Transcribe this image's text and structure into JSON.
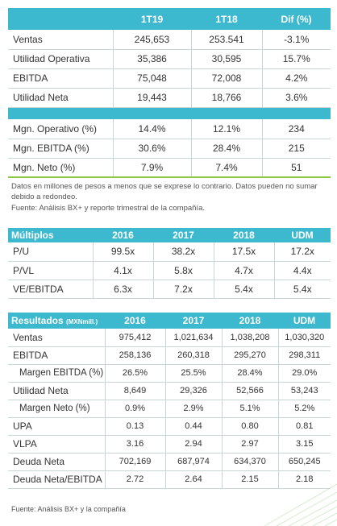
{
  "summary": {
    "header": [
      "1T19",
      "1T18",
      "Dif (%)"
    ],
    "rows": [
      [
        "Ventas",
        "245,653",
        "253.541",
        "-3.1%"
      ],
      [
        "Utilidad Operativa",
        "35,386",
        "30,595",
        "15.7%"
      ],
      [
        "EBITDA",
        "75,048",
        "72,008",
        "4.2%"
      ],
      [
        "Utilidad Neta",
        "19,443",
        "18,766",
        "3.6%"
      ]
    ],
    "margin_rows": [
      [
        "Mgn. Operativo (%)",
        "14.4%",
        "12.1%",
        "234"
      ],
      [
        "Mgn. EBITDA (%)",
        "30.6%",
        "28.4%",
        "215"
      ],
      [
        "Mgn. Neto (%)",
        "7.9%",
        "7.4%",
        "51"
      ]
    ]
  },
  "note": "Datos en millones de pesos a menos que se exprese lo contrario. Datos pueden no sumar debido a redondeo.",
  "source_1": "Fuente: Análisis BX+ y reporte trimestral de la compañía.",
  "multiples": {
    "header": [
      "Múltiplos",
      "2016",
      "2017",
      "2018",
      "UDM"
    ],
    "rows": [
      [
        "P/U",
        "99.5x",
        "38.2x",
        "17.5x",
        "17.2x"
      ],
      [
        "P/VL",
        "4.1x",
        "5.8x",
        "4.7x",
        "4.4x"
      ],
      [
        "VE/EBITDA",
        "6.3x",
        "7.2x",
        "5.4x",
        "5.4x"
      ]
    ]
  },
  "results": {
    "title": "Resultados",
    "unit": "(MXNmill.)",
    "header": [
      "2016",
      "2017",
      "2018",
      "UDM"
    ],
    "rows": [
      [
        "Ventas",
        "975,412",
        "1,021,634",
        "1,038,208",
        "1,030,320"
      ],
      [
        "EBITDA",
        "258,136",
        "260,318",
        "295,270",
        "298,311"
      ],
      [
        "Margen EBITDA (%)",
        "26.5%",
        "25.5%",
        "28.4%",
        "29.0%"
      ],
      [
        "Utilidad Neta",
        "8,649",
        "29,326",
        "52,566",
        "53,243"
      ],
      [
        "Margen Neto (%)",
        "0.9%",
        "2.9%",
        "5.1%",
        "5.2%"
      ],
      [
        "UPA",
        "0.13",
        "0.44",
        "0.80",
        "0.81"
      ],
      [
        "VLPA",
        "3.16",
        "2.94",
        "2.97",
        "3.15"
      ],
      [
        "Deuda Neta",
        "702,169",
        "687,974",
        "634,370",
        "650,245"
      ],
      [
        "Deuda Neta/EBITDA",
        "2.72",
        "2.64",
        "2.15",
        "2.18"
      ]
    ]
  },
  "source_2": "Fuente: Análisis BX+ y la compañía"
}
